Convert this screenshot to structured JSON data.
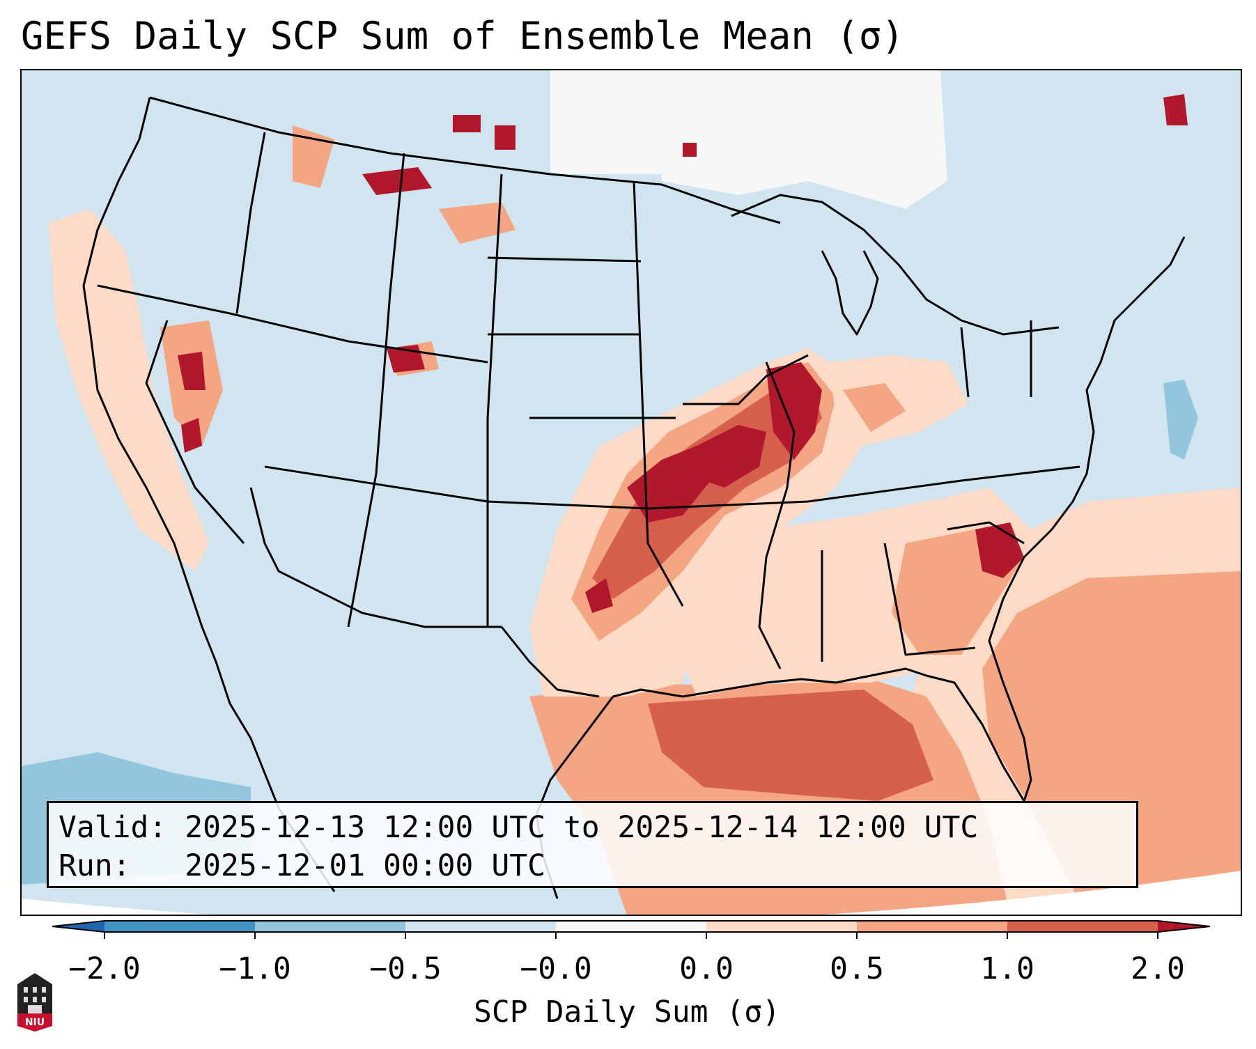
{
  "title": "GEFS Daily SCP Sum of Ensemble Mean (σ)",
  "info": {
    "valid_line": "Valid: 2025-12-13 12:00 UTC to 2025-12-14 12:00 UTC",
    "run_line": "Run:   2025-12-01 00:00 UTC"
  },
  "colorbar": {
    "label": "SCP Daily Sum (σ)",
    "ticks": [
      "−2.0",
      "−1.0",
      "−0.5",
      "−0.0",
      "0.0",
      "0.5",
      "1.0",
      "2.0"
    ],
    "bins": [
      {
        "range": "< -2.0",
        "color": "#2166ac"
      },
      {
        "range": "-2.0 to -1.0",
        "color": "#4393c3"
      },
      {
        "range": "-1.0 to -0.5",
        "color": "#92c5de"
      },
      {
        "range": "-0.5 to -0.0",
        "color": "#d1e5f0"
      },
      {
        "range": "-0.0 to 0.0",
        "color": "#f7f7f7"
      },
      {
        "range": "0.0 to 0.5",
        "color": "#fddbc7"
      },
      {
        "range": "0.5 to 1.0",
        "color": "#f4a582"
      },
      {
        "range": "1.0 to 2.0",
        "color": "#d6604d"
      },
      {
        "range": "> 2.0",
        "color": "#b2182b"
      }
    ]
  },
  "map": {
    "region": "Continental United States",
    "highlights": [
      {
        "area": "Mid-Mississippi Valley (Missouri / Illinois)",
        "category": "> 2.0"
      },
      {
        "area": "Eastern Oklahoma / Kansas",
        "category": "1.0 to 2.0"
      },
      {
        "area": "South Carolina",
        "category": "> 2.0"
      },
      {
        "area": "Gulf of Mexico / Florida",
        "category": "1.0 to 2.0"
      },
      {
        "area": "Western Atlantic",
        "category": "0.5 to 1.0"
      },
      {
        "area": "Nevada / Montana / Wyoming scattered",
        "category": "> 2.0"
      }
    ]
  },
  "logo": {
    "text": "NIU"
  }
}
